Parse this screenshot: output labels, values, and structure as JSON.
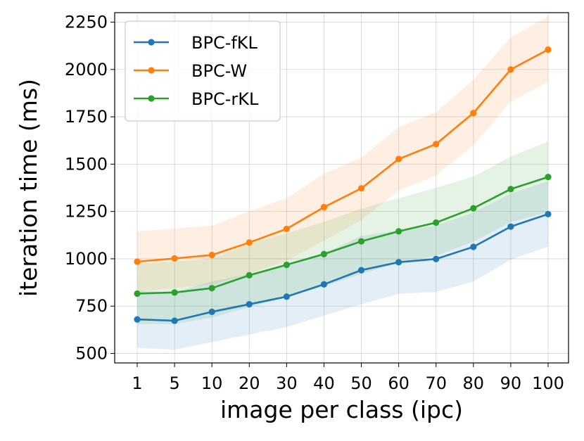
{
  "chart_data": {
    "type": "line",
    "title": "",
    "xlabel": "image per class (ipc)",
    "ylabel": "iteration time (ms)",
    "categories": [
      "1",
      "5",
      "10",
      "20",
      "30",
      "40",
      "50",
      "60",
      "70",
      "80",
      "90",
      "100"
    ],
    "ylim": [
      450,
      2300
    ],
    "yticks": [
      500,
      750,
      1000,
      1250,
      1500,
      1750,
      2000,
      2250
    ],
    "grid": true,
    "legend_position": "top-left",
    "series": [
      {
        "name": "BPC-fKL",
        "color": "#1f77b4",
        "values": [
          680,
          673,
          720,
          760,
          800,
          865,
          940,
          982,
          999,
          1063,
          1170,
          1236
        ],
        "lower": [
          530,
          520,
          560,
          600,
          640,
          700,
          760,
          815,
          825,
          880,
          995,
          1065
        ],
        "upper": [
          830,
          825,
          880,
          920,
          960,
          1030,
          1120,
          1150,
          1175,
          1245,
          1345,
          1410
        ]
      },
      {
        "name": "BPC-W",
        "color": "#ff7f0e",
        "values": [
          985,
          1002,
          1020,
          1086,
          1158,
          1273,
          1372,
          1527,
          1606,
          1770,
          2000,
          2105
        ],
        "lower": [
          825,
          845,
          865,
          920,
          990,
          1095,
          1205,
          1360,
          1440,
          1600,
          1830,
          1935
        ],
        "upper": [
          1145,
          1160,
          1175,
          1250,
          1320,
          1450,
          1535,
          1695,
          1775,
          1945,
          2170,
          2280
        ]
      },
      {
        "name": "BPC-rKL",
        "color": "#2ca02c",
        "values": [
          816,
          822,
          845,
          913,
          968,
          1025,
          1092,
          1145,
          1191,
          1267,
          1368,
          1432
        ],
        "lower": [
          655,
          655,
          690,
          745,
          800,
          855,
          920,
          980,
          1015,
          1090,
          1195,
          1245
        ],
        "upper": [
          975,
          985,
          1000,
          1080,
          1135,
          1195,
          1265,
          1320,
          1375,
          1435,
          1540,
          1620
        ]
      }
    ]
  }
}
